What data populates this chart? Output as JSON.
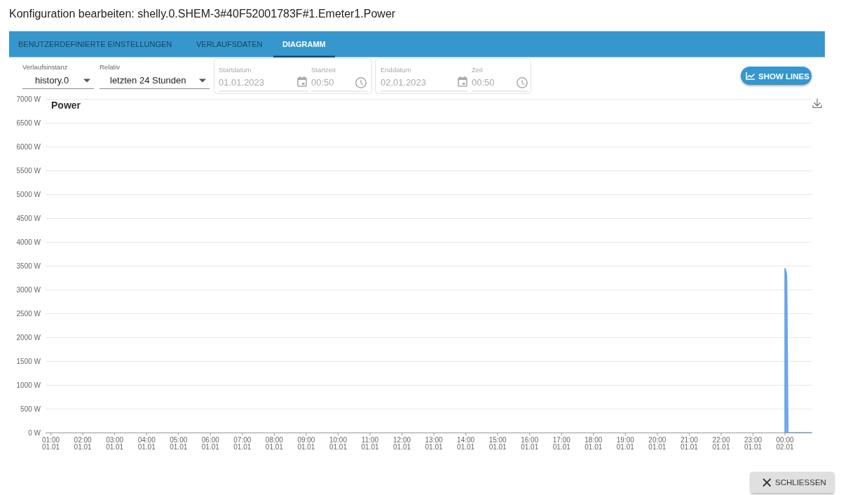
{
  "chart_data": {
    "type": "area",
    "title": "Power",
    "x": [
      "2023-01-02T00:00",
      "2023-01-02T00:03",
      "2023-01-02T00:06",
      "2023-01-02T00:50"
    ],
    "values": [
      3450,
      3300,
      0,
      0
    ],
    "color": "#5c9ee6",
    "xlim": [
      "2023-01-01T00:50",
      "2023-01-02T00:50"
    ],
    "xticks": [
      {
        "value": "2023-01-01T01:00",
        "label": "01:00\n01.01"
      },
      {
        "value": "2023-01-01T02:00",
        "label": "02:00\n01.01"
      },
      {
        "value": "2023-01-01T03:00",
        "label": "03:00\n01.01"
      },
      {
        "value": "2023-01-01T04:00",
        "label": "04:00\n01.01"
      },
      {
        "value": "2023-01-01T05:00",
        "label": "05:00\n01.01"
      },
      {
        "value": "2023-01-01T06:00",
        "label": "06:00\n01.01"
      },
      {
        "value": "2023-01-01T07:00",
        "label": "07:00\n01.01"
      },
      {
        "value": "2023-01-01T08:00",
        "label": "08:00\n01.01"
      },
      {
        "value": "2023-01-01T09:00",
        "label": "09:00\n01.01"
      },
      {
        "value": "2023-01-01T10:00",
        "label": "10:00\n01.01"
      },
      {
        "value": "2023-01-01T11:00",
        "label": "11:00\n01.01"
      },
      {
        "value": "2023-01-01T12:00",
        "label": "12:00\n01.01"
      },
      {
        "value": "2023-01-01T13:00",
        "label": "13:00\n01.01"
      },
      {
        "value": "2023-01-01T14:00",
        "label": "14:00\n01.01"
      },
      {
        "value": "2023-01-01T15:00",
        "label": "15:00\n01.01"
      },
      {
        "value": "2023-01-01T16:00",
        "label": "16:00\n01.01"
      },
      {
        "value": "2023-01-01T17:00",
        "label": "17:00\n01.01"
      },
      {
        "value": "2023-01-01T18:00",
        "label": "18:00\n01.01"
      },
      {
        "value": "2023-01-01T19:00",
        "label": "19:00\n01.01"
      },
      {
        "value": "2023-01-01T20:00",
        "label": "20:00\n01.01"
      },
      {
        "value": "2023-01-01T21:00",
        "label": "21:00\n01.01"
      },
      {
        "value": "2023-01-01T22:00",
        "label": "22:00\n01.01"
      },
      {
        "value": "2023-01-01T23:00",
        "label": "23:00\n01.01"
      },
      {
        "value": "2023-01-02T00:00",
        "label": "00:00\n02.01"
      }
    ],
    "ylim": [
      0,
      7000
    ],
    "yticks": [
      {
        "value": 0,
        "label": "0 W"
      },
      {
        "value": 500,
        "label": "500 W"
      },
      {
        "value": 1000,
        "label": "1000 W"
      },
      {
        "value": 1500,
        "label": "1500 W"
      },
      {
        "value": 2000,
        "label": "2000 W"
      },
      {
        "value": 2500,
        "label": "2500 W"
      },
      {
        "value": 3000,
        "label": "3000 W"
      },
      {
        "value": 3500,
        "label": "3500 W"
      },
      {
        "value": 4000,
        "label": "4000 W"
      },
      {
        "value": 4500,
        "label": "4500 W"
      },
      {
        "value": 5000,
        "label": "5000 W"
      },
      {
        "value": 5500,
        "label": "5500 W"
      },
      {
        "value": 6000,
        "label": "6000 W"
      },
      {
        "value": 6500,
        "label": "6500 W"
      },
      {
        "value": 7000,
        "label": "7000 W"
      }
    ],
    "grid": "y",
    "annotations": [
      "Konfiguration bearbeiten: shelly.0.SHEM-3#40F52001783F#1.Emeter1.Power",
      "BENUTZERDEFINIERTE EINSTELLUNGEN",
      "VERLAUFSDATEN",
      "DIAGRAMM",
      "Verlaufsinstanz",
      "history.0",
      "Relativ",
      "letzten 24 Stunden",
      "Startdatum",
      "01.01.2023",
      "Startzeit",
      "00:50",
      "Enddatum",
      "02.01.2023",
      "Zeit",
      "00:50",
      "SHOW LINES",
      "SCHLIESSEN"
    ]
  }
}
